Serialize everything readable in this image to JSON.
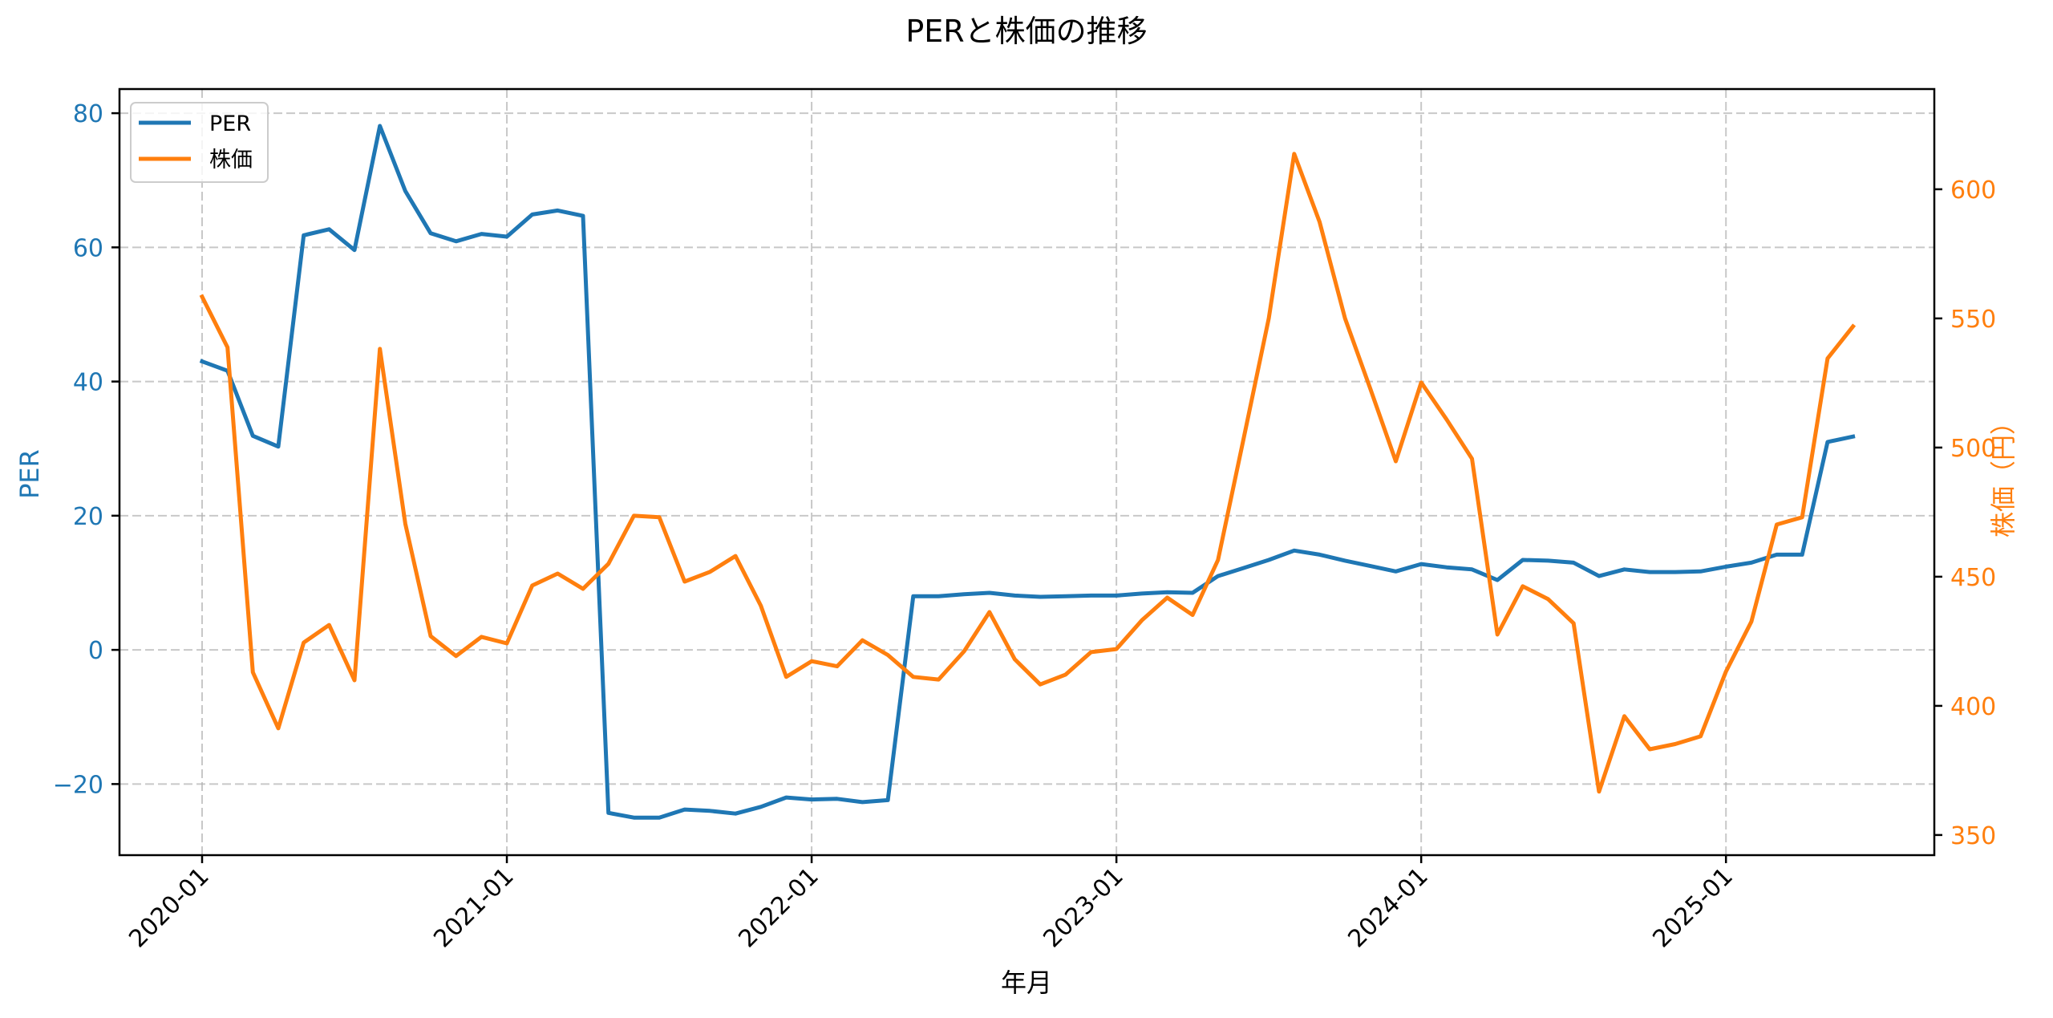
{
  "chart_data": {
    "type": "line",
    "title": "PERと株価の推移",
    "xlabel": "年月",
    "ylabel": "PER",
    "ylabel_right": "株価（円）",
    "x": [
      "2020-01",
      "2020-02",
      "2020-03",
      "2020-04",
      "2020-05",
      "2020-06",
      "2020-07",
      "2020-08",
      "2020-09",
      "2020-10",
      "2020-11",
      "2020-12",
      "2021-01",
      "2021-02",
      "2021-03",
      "2021-04",
      "2021-05",
      "2021-06",
      "2021-07",
      "2021-08",
      "2021-09",
      "2021-10",
      "2021-11",
      "2021-12",
      "2022-01",
      "2022-02",
      "2022-03",
      "2022-04",
      "2022-05",
      "2022-06",
      "2022-07",
      "2022-08",
      "2022-09",
      "2022-10",
      "2022-11",
      "2022-12",
      "2023-01",
      "2023-02",
      "2023-03",
      "2023-04",
      "2023-05",
      "2023-06",
      "2023-07",
      "2023-08",
      "2023-09",
      "2023-10",
      "2023-11",
      "2023-12",
      "2024-01",
      "2024-02",
      "2024-03",
      "2024-04",
      "2024-05",
      "2024-06",
      "2024-07",
      "2024-08",
      "2024-09",
      "2024-10",
      "2024-11",
      "2024-12",
      "2025-01",
      "2025-02",
      "2025-03",
      "2025-04",
      "2025-05",
      "2025-06"
    ],
    "x_ticks": [
      "2020-01",
      "2021-01",
      "2022-01",
      "2023-01",
      "2024-01",
      "2025-01"
    ],
    "series": [
      {
        "name": "PER",
        "axis": "left",
        "color": "#1f77b4",
        "values": [
          43.0,
          41.6,
          31.9,
          30.3,
          61.8,
          62.7,
          59.6,
          78.1,
          68.4,
          62.1,
          60.9,
          62.0,
          61.6,
          64.9,
          65.5,
          64.7,
          -24.3,
          -25.0,
          -25.0,
          -23.8,
          -24.0,
          -24.4,
          -23.4,
          -22.0,
          -22.3,
          -22.2,
          -22.7,
          -22.4,
          8.0,
          8.0,
          8.3,
          8.5,
          8.1,
          7.9,
          8.0,
          8.1,
          8.1,
          8.4,
          8.6,
          8.5,
          11.0,
          12.2,
          13.4,
          14.8,
          14.2,
          13.3,
          12.5,
          11.7,
          12.8,
          12.3,
          12.0,
          10.4,
          13.4,
          13.3,
          13.0,
          11.0,
          12.0,
          11.6,
          11.6,
          11.7,
          12.4,
          13.0,
          14.2,
          14.2,
          31.0,
          31.8
        ]
      },
      {
        "name": "株価",
        "axis": "right",
        "color": "#ff7f0e",
        "values": [
          558.4,
          538.8,
          413.0,
          391.3,
          424.5,
          431.3,
          409.9,
          538.2,
          470.5,
          427.0,
          419.3,
          426.7,
          424.2,
          446.6,
          451.2,
          445.3,
          455.0,
          473.6,
          473.0,
          448.1,
          451.9,
          458.0,
          438.8,
          411.2,
          417.3,
          415.3,
          425.4,
          419.7,
          411.2,
          410.2,
          421.1,
          436.3,
          418.0,
          408.3,
          412.1,
          420.8,
          422.0,
          433.1,
          441.9,
          435.2,
          456.5,
          503.1,
          550.0,
          613.7,
          587.3,
          550.0,
          522.7,
          494.7,
          525.2,
          510.9,
          495.7,
          427.6,
          446.3,
          441.3,
          432.0,
          366.8,
          396.0,
          383.2,
          385.2,
          388.2,
          413.3,
          432.6,
          470.2,
          473.0,
          534.5,
          546.9
        ]
      }
    ],
    "ylim_left": [
      -30.6,
      83.6
    ],
    "ylim_right": [
      342.2,
      638.8
    ],
    "yticks_left": [
      -20,
      0,
      20,
      40,
      60,
      80
    ],
    "yticks_right": [
      350,
      400,
      450,
      500,
      550,
      600
    ],
    "grid": true,
    "legend_position": "upper left"
  },
  "legend": {
    "items": [
      {
        "label": "PER",
        "color": "#1f77b4"
      },
      {
        "label": "株価",
        "color": "#ff7f0e"
      }
    ]
  }
}
